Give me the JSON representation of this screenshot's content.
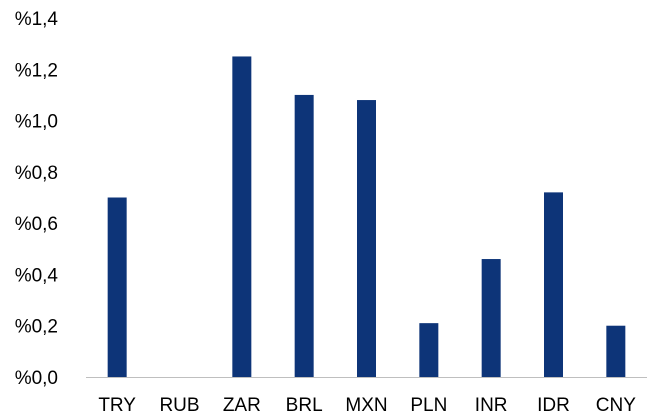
{
  "chart_data": {
    "type": "bar",
    "title": "",
    "xlabel": "",
    "ylabel": "",
    "categories": [
      "TRY",
      "RUB",
      "ZAR",
      "BRL",
      "MXN",
      "PLN",
      "INR",
      "IDR",
      "CNY"
    ],
    "values": [
      0.7,
      0.0,
      1.25,
      1.1,
      1.08,
      0.21,
      0.46,
      0.72,
      0.2
    ],
    "ylim": [
      0.0,
      1.4
    ],
    "yticks": [
      {
        "value": 0.0,
        "label": "%0,0"
      },
      {
        "value": 0.2,
        "label": "%0,2"
      },
      {
        "value": 0.4,
        "label": "%0,4"
      },
      {
        "value": 0.6,
        "label": "%0,6"
      },
      {
        "value": 0.8,
        "label": "%0,8"
      },
      {
        "value": 1.0,
        "label": "%1,0"
      },
      {
        "value": 1.2,
        "label": "%1,2"
      },
      {
        "value": 1.4,
        "label": "%1,4"
      }
    ],
    "grid": false,
    "legend": "none",
    "colors": {
      "bar": "#0d3478",
      "axis": "#bfbfbf",
      "text": "#000000"
    }
  }
}
